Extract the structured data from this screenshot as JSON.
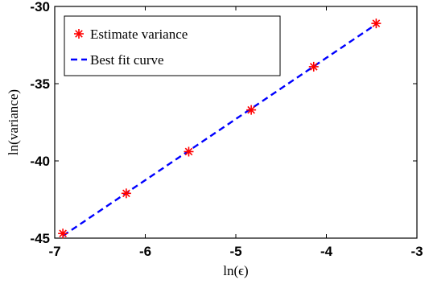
{
  "chart_data": {
    "type": "scatter",
    "xlabel": "ln(ϵ)",
    "ylabel": "ln(variance)",
    "xlim": [
      -7,
      -3
    ],
    "ylim": [
      -45,
      -30
    ],
    "xticks": [
      -7,
      -6,
      -5,
      -4,
      -3
    ],
    "yticks": [
      -45,
      -40,
      -35,
      -30
    ],
    "grid": false,
    "legend_position": "top-left",
    "series": [
      {
        "name": "Estimate variance",
        "marker": "asterisk",
        "color": "#ff0000",
        "x": [
          -6.91,
          -6.21,
          -5.52,
          -4.83,
          -4.14,
          -3.45
        ],
        "y": [
          -44.7,
          -42.1,
          -39.4,
          -36.7,
          -33.9,
          -31.1
        ]
      },
      {
        "name": "Best fit curve",
        "line": "dashed",
        "color": "#0000ff",
        "x": [
          -6.91,
          -3.45
        ],
        "y": [
          -44.85,
          -31.15
        ]
      }
    ]
  }
}
